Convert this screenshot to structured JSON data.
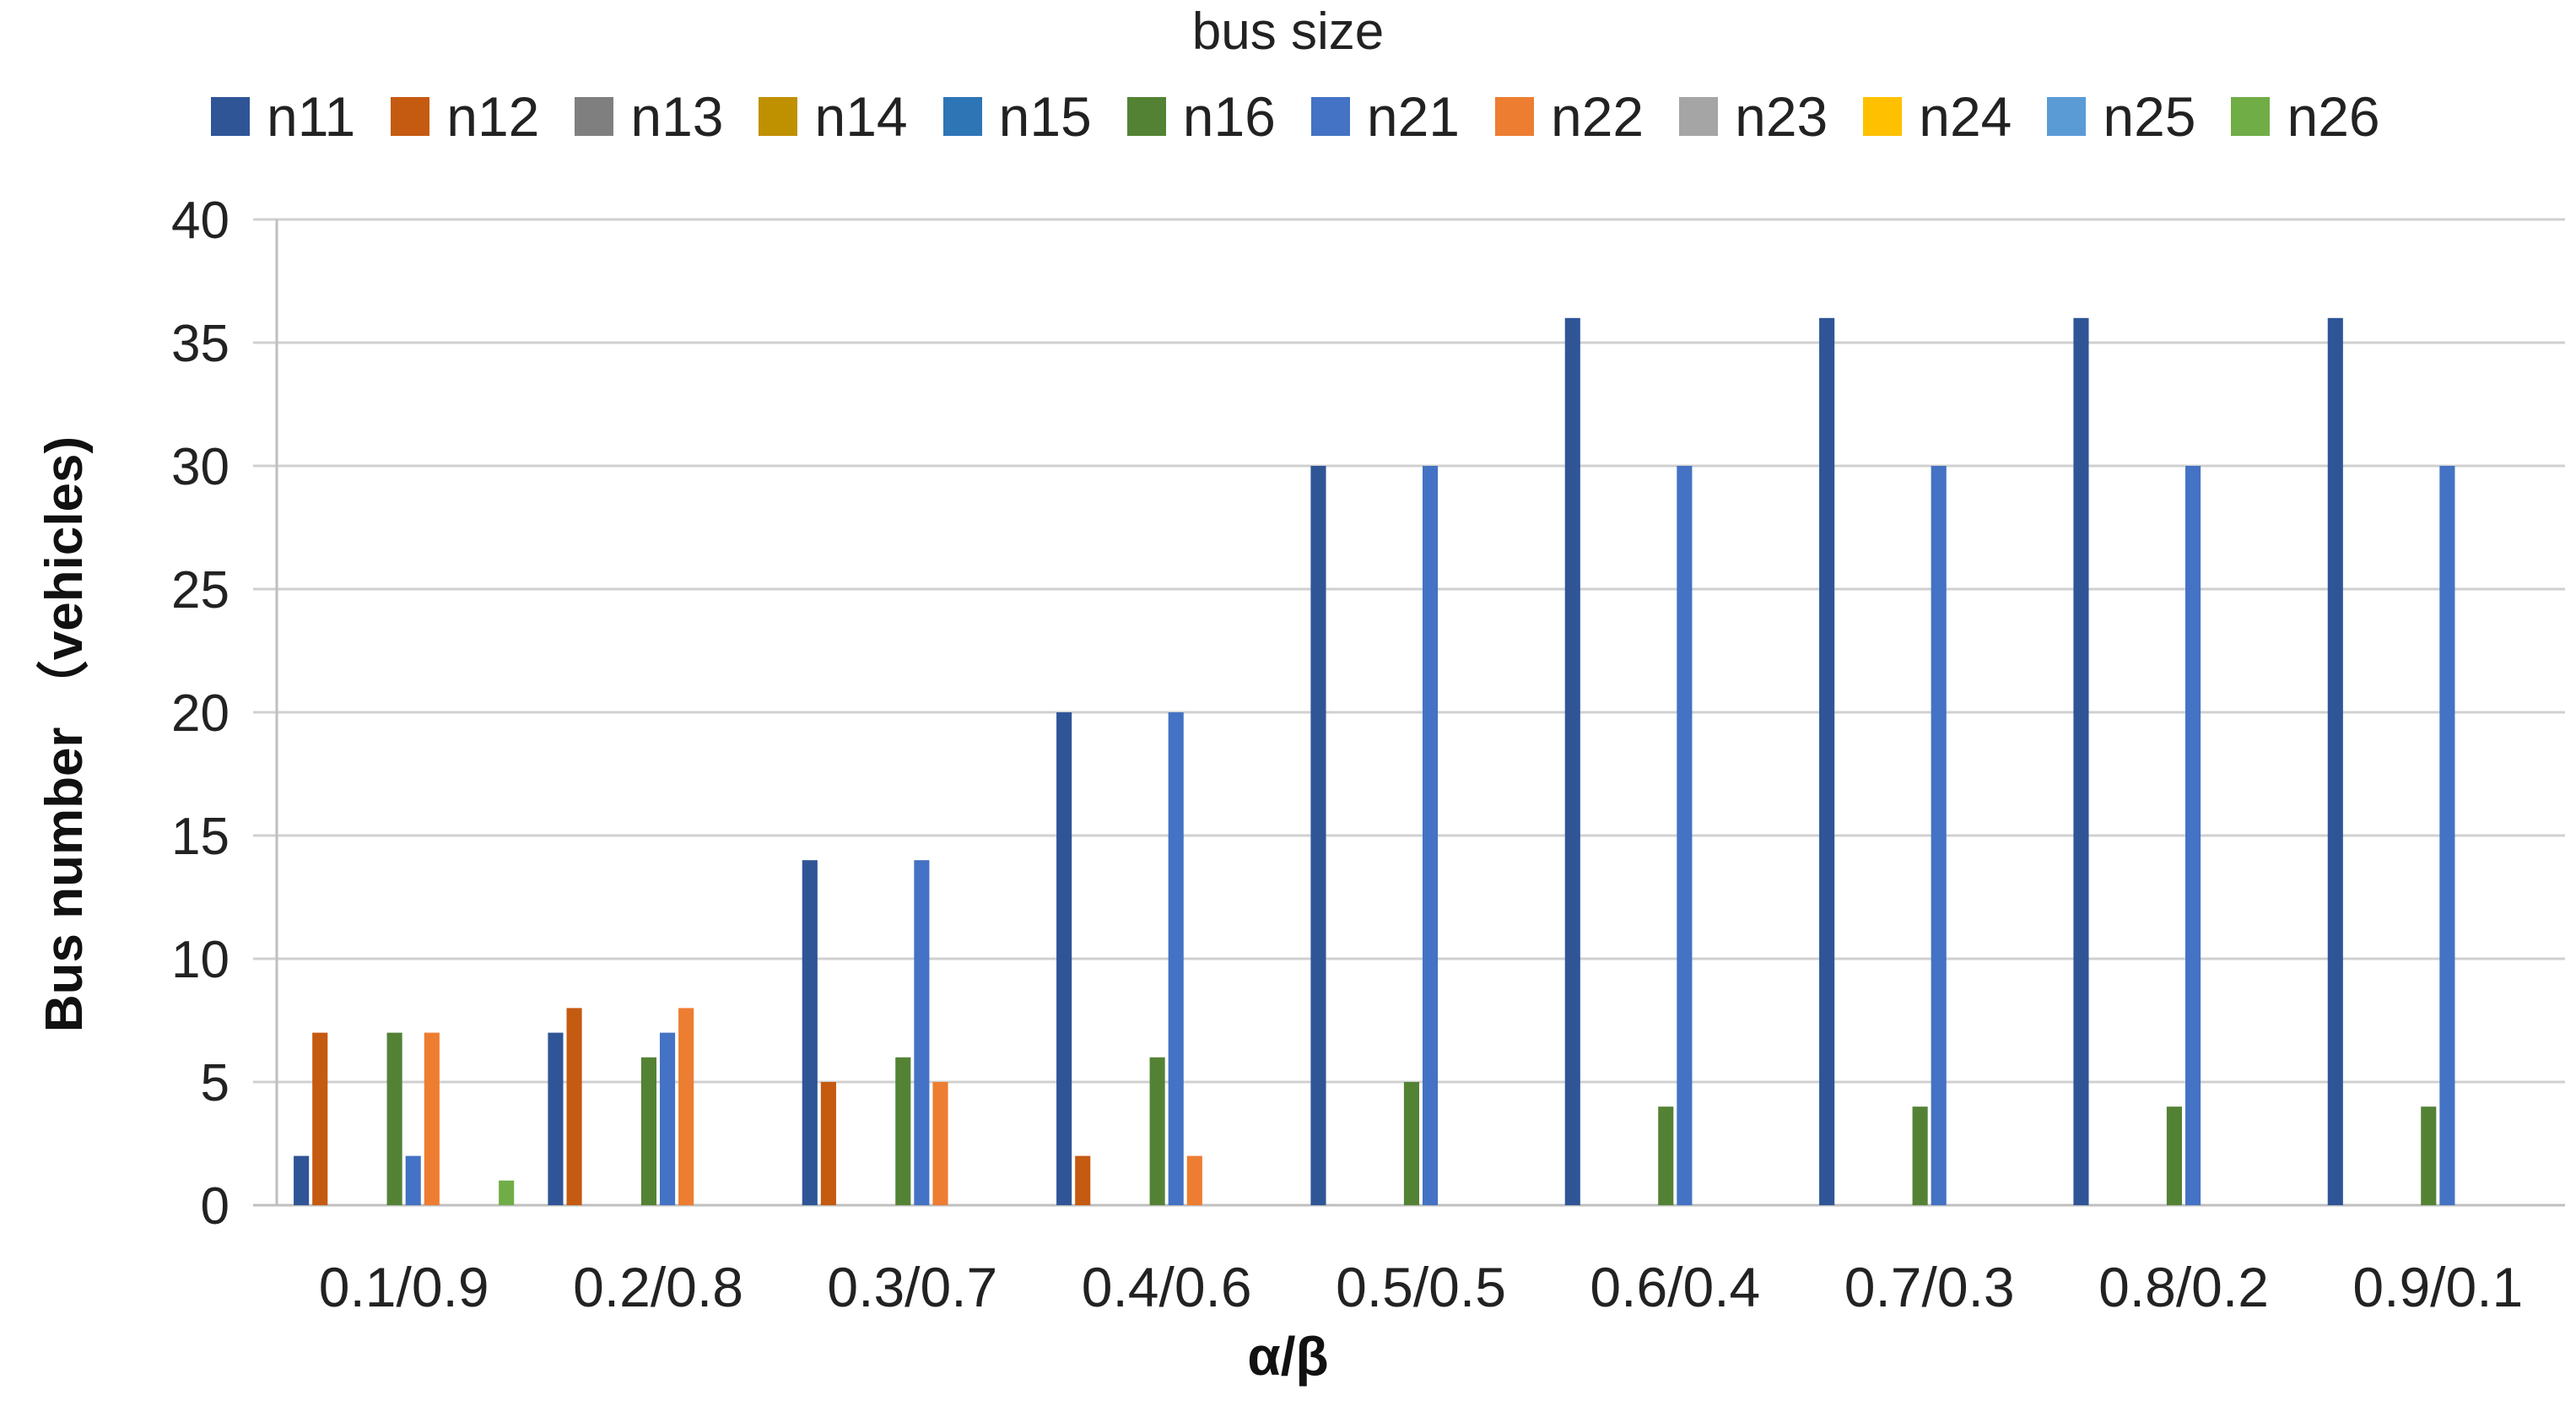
{
  "chart_data": {
    "type": "bar",
    "title": "",
    "legend_title": "bus size",
    "xlabel": "α/β",
    "ylabel": "Bus number （vehicles)",
    "ylim": [
      0,
      40
    ],
    "yticks": [
      0,
      5,
      10,
      15,
      20,
      25,
      30,
      35,
      40
    ],
    "grid": true,
    "legend_position": "top",
    "categories": [
      "0.1/0.9",
      "0.2/0.8",
      "0.3/0.7",
      "0.4/0.6",
      "0.5/0.5",
      "0.6/0.4",
      "0.7/0.3",
      "0.8/0.2",
      "0.9/0.1"
    ],
    "series": [
      {
        "name": "n11",
        "color": "#2F5597",
        "values": [
          2,
          7,
          14,
          20,
          30,
          36,
          36,
          36,
          36
        ]
      },
      {
        "name": "n12",
        "color": "#C55A11",
        "values": [
          7,
          8,
          5,
          2,
          0,
          0,
          0,
          0,
          0
        ]
      },
      {
        "name": "n13",
        "color": "#7F7F7F",
        "values": [
          0,
          0,
          0,
          0,
          0,
          0,
          0,
          0,
          0
        ]
      },
      {
        "name": "n14",
        "color": "#BF9000",
        "values": [
          0,
          0,
          0,
          0,
          0,
          0,
          0,
          0,
          0
        ]
      },
      {
        "name": "n15",
        "color": "#2E75B6",
        "values": [
          0,
          0,
          0,
          0,
          0,
          0,
          0,
          0,
          0
        ]
      },
      {
        "name": "n16",
        "color": "#548235",
        "values": [
          7,
          6,
          6,
          6,
          5,
          4,
          4,
          4,
          4
        ]
      },
      {
        "name": "n21",
        "color": "#4472C4",
        "values": [
          2,
          7,
          14,
          20,
          30,
          30,
          30,
          30,
          30
        ]
      },
      {
        "name": "n22",
        "color": "#ED7D31",
        "values": [
          7,
          8,
          5,
          2,
          0,
          0,
          0,
          0,
          0
        ]
      },
      {
        "name": "n23",
        "color": "#A5A5A5",
        "values": [
          0,
          0,
          0,
          0,
          0,
          0,
          0,
          0,
          0
        ]
      },
      {
        "name": "n24",
        "color": "#FFC000",
        "values": [
          0,
          0,
          0,
          0,
          0,
          0,
          0,
          0,
          0
        ]
      },
      {
        "name": "n25",
        "color": "#5B9BD5",
        "values": [
          0,
          0,
          0,
          0,
          0,
          0,
          0,
          0,
          0
        ]
      },
      {
        "name": "n26",
        "color": "#70AD47",
        "values": [
          1,
          0,
          0,
          0,
          0,
          0,
          0,
          0,
          0
        ]
      }
    ]
  }
}
